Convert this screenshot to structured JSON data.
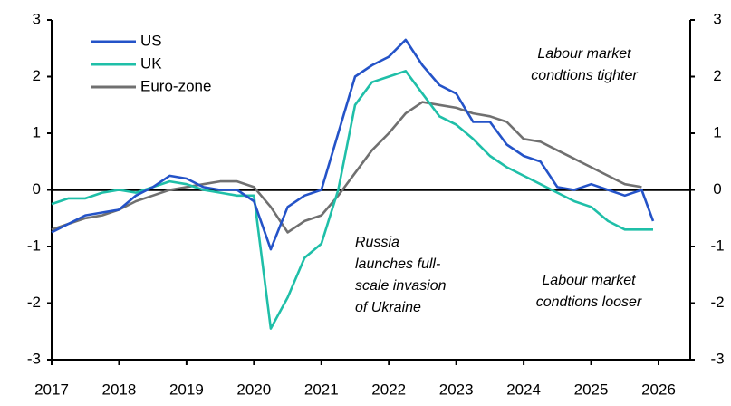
{
  "chart_data": {
    "type": "line",
    "x": [
      2017.0,
      2017.25,
      2017.5,
      2017.75,
      2018.0,
      2018.25,
      2018.5,
      2018.75,
      2019.0,
      2019.25,
      2019.5,
      2019.75,
      2020.0,
      2020.25,
      2020.5,
      2020.75,
      2021.0,
      2021.25,
      2021.5,
      2021.75,
      2022.0,
      2022.25,
      2022.5,
      2022.75,
      2023.0,
      2023.25,
      2023.5,
      2023.75,
      2024.0,
      2024.25,
      2024.5,
      2024.75,
      2025.0,
      2025.25,
      2025.5,
      2025.75,
      2025.92
    ],
    "series": [
      {
        "name": "US",
        "color": "#2453c8",
        "values": [
          -0.75,
          -0.6,
          -0.45,
          -0.4,
          -0.35,
          -0.1,
          0.05,
          0.25,
          0.2,
          0.05,
          0.0,
          0.0,
          -0.2,
          -1.05,
          -0.3,
          -0.1,
          0.0,
          1.0,
          2.0,
          2.2,
          2.35,
          2.65,
          2.2,
          1.85,
          1.7,
          1.2,
          1.2,
          0.8,
          0.6,
          0.5,
          0.05,
          0.0,
          0.1,
          0.0,
          -0.1,
          0.0,
          -0.55
        ]
      },
      {
        "name": "UK",
        "color": "#1fbfa8",
        "values": [
          -0.25,
          -0.15,
          -0.15,
          -0.05,
          0.0,
          -0.05,
          0.05,
          0.15,
          0.1,
          0.0,
          -0.05,
          -0.1,
          -0.1,
          -2.45,
          -1.9,
          -1.2,
          -0.95,
          0.0,
          1.5,
          1.9,
          2.0,
          2.1,
          1.7,
          1.3,
          1.15,
          0.9,
          0.6,
          0.4,
          0.25,
          0.1,
          -0.05,
          -0.2,
          -0.3,
          -0.55,
          -0.7,
          -0.7,
          -0.7
        ]
      },
      {
        "name": "Euro-zone",
        "color": "#707070",
        "values": [
          -0.7,
          -0.6,
          -0.5,
          -0.45,
          -0.35,
          -0.2,
          -0.1,
          0.0,
          0.05,
          0.1,
          0.15,
          0.15,
          0.05,
          -0.3,
          -0.75,
          -0.55,
          -0.45,
          -0.1,
          0.3,
          0.7,
          1.0,
          1.35,
          1.55,
          1.5,
          1.45,
          1.35,
          1.3,
          1.2,
          0.9,
          0.85,
          0.7,
          0.55,
          0.4,
          0.25,
          0.1,
          0.05,
          null
        ]
      }
    ],
    "xlim": [
      2017,
      2026
    ],
    "xticks": [
      2017,
      2018,
      2019,
      2020,
      2021,
      2022,
      2023,
      2024,
      2025,
      2026
    ],
    "ylim": [
      -3,
      3
    ],
    "yticks": [
      -3,
      -2,
      -1,
      0,
      1,
      2,
      3
    ],
    "y2lim": [
      -3,
      3
    ],
    "y2ticks": [
      -3,
      -2,
      -1,
      0,
      1,
      2,
      3
    ],
    "annotations": [
      {
        "lines": [
          "Labour market",
          "condtions tighter"
        ]
      },
      {
        "lines": [
          "Russia",
          "launches full-",
          "scale invasion",
          "of Ukraine"
        ]
      },
      {
        "lines": [
          "Labour market",
          "condtions looser"
        ]
      }
    ],
    "legend": "upper left"
  }
}
